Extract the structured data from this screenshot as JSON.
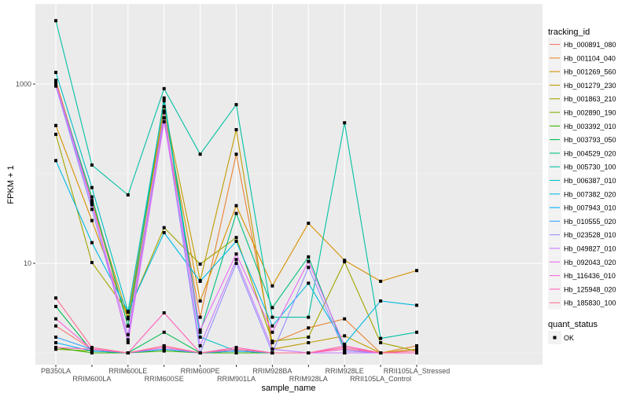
{
  "chart_data": {
    "type": "line",
    "xlabel": "sample_name",
    "ylabel": "FPKM + 1",
    "y_scale": "log10",
    "y_ticks": [
      "10",
      "1000"
    ],
    "grid": true,
    "legend_position": "right",
    "categories": [
      "PB350LA",
      "RRIM600LA",
      "RRIM600LE",
      "RRIM600SE",
      "RRIM600PE",
      "RRIM901LA",
      "RRIM928BA",
      "RRIM928LA",
      "RRIM928LE",
      "RRII105LA_Control",
      "RRII105LA_Stressed"
    ],
    "legend_title": "tracking_id",
    "series": [
      {
        "name": "Hb_000891_080",
        "color": "#F8766D",
        "values": [
          2.0,
          1.1,
          1.0,
          1.2,
          1.0,
          1.1,
          1.0,
          1.0,
          1.1,
          1.0,
          1.1
        ]
      },
      {
        "name": "Hb_001104_040",
        "color": "#EA8331",
        "values": [
          1100,
          50,
          2.0,
          420,
          2.5,
          165,
          1.3,
          1.9,
          2.4,
          1.0,
          1.2
        ]
      },
      {
        "name": "Hb_001269_560",
        "color": "#D89000",
        "values": [
          345,
          30,
          2.4,
          500,
          3.8,
          44,
          5.6,
          28,
          10.8,
          6.3,
          8.3
        ]
      },
      {
        "name": "Hb_001279_230",
        "color": "#C09B00",
        "values": [
          1000,
          50,
          2.5,
          560,
          6.4,
          310,
          1.1,
          1.3,
          1.55,
          1.0,
          1.1
        ]
      },
      {
        "name": "Hb_001863_210",
        "color": "#A3A500",
        "values": [
          275,
          10.2,
          2.85,
          25,
          9.8,
          19.4,
          1.35,
          1.5,
          10.4,
          1.3,
          1.05
        ]
      },
      {
        "name": "Hb_002890_190",
        "color": "#7CAE00",
        "values": [
          1.1,
          1.05,
          1.0,
          1.1,
          1.0,
          1.05,
          1.0,
          1.0,
          1.0,
          1.0,
          1.0
        ]
      },
      {
        "name": "Hb_003392_010",
        "color": "#39B600",
        "values": [
          1.15,
          1.0,
          1.0,
          1.05,
          1.0,
          1.0,
          1.0,
          1.0,
          1.0,
          1.0,
          1.0
        ]
      },
      {
        "name": "Hb_003793_050",
        "color": "#00BB4E",
        "values": [
          3.3,
          1.05,
          1.0,
          1.7,
          1.0,
          1.05,
          1.0,
          1.0,
          1.0,
          1.0,
          1.0
        ]
      },
      {
        "name": "Hb_004529_020",
        "color": "#00BF7D",
        "values": [
          1000,
          55,
          2.0,
          700,
          1.7,
          36,
          3.2,
          11.8,
          1.1,
          1.0,
          1.0
        ]
      },
      {
        "name": "Hb_005730_100",
        "color": "#00C1A3",
        "values": [
          5100,
          125,
          58,
          890,
          165,
          590,
          2.5,
          2.5,
          370,
          1.45,
          1.7
        ]
      },
      {
        "name": "Hb_006387_010",
        "color": "#00BFC4",
        "values": [
          1350,
          70,
          2.9,
          650,
          1.5,
          1.05,
          1.0,
          1.0,
          1.0,
          1.0,
          1.0
        ]
      },
      {
        "name": "Hb_007382_020",
        "color": "#00BAE0",
        "values": [
          140,
          17,
          2.9,
          22,
          6.3,
          17.6,
          2.0,
          6.0,
          1.25,
          3.8,
          3.4
        ]
      },
      {
        "name": "Hb_007943_010",
        "color": "#00B0F6",
        "values": [
          1.3,
          1.05,
          1.0,
          1.1,
          1.0,
          1.05,
          1.0,
          1.0,
          1.0,
          1.0,
          1.0
        ]
      },
      {
        "name": "Hb_010555_020",
        "color": "#35A2FF",
        "values": [
          1.5,
          1.1,
          1.0,
          1.1,
          1.0,
          1.05,
          1.0,
          1.0,
          1.0,
          1.0,
          1.0
        ]
      },
      {
        "name": "Hb_023528_010",
        "color": "#9590FF",
        "values": [
          950,
          40,
          1.4,
          420,
          1.0,
          10,
          1.0,
          9.0,
          1.05,
          1.0,
          1.0
        ]
      },
      {
        "name": "Hb_049827_010",
        "color": "#C77CFF",
        "values": [
          980,
          45,
          1.6,
          480,
          1.2,
          11,
          1.1,
          1.0,
          1.0,
          1.0,
          1.0
        ]
      },
      {
        "name": "Hb_092043_020",
        "color": "#E76BF3",
        "values": [
          1020,
          48,
          1.3,
          380,
          1.8,
          12.7,
          1.7,
          10.5,
          1.2,
          1.0,
          1.0
        ]
      },
      {
        "name": "Hb_116436_010",
        "color": "#FA62DB",
        "values": [
          2.4,
          1.1,
          1.0,
          1.15,
          1.0,
          1.1,
          1.0,
          1.0,
          1.1,
          1.0,
          1.0
        ]
      },
      {
        "name": "Hb_125948_020",
        "color": "#FF62BC",
        "values": [
          1.15,
          1.1,
          1.0,
          2.8,
          1.0,
          1.15,
          1.0,
          1.0,
          1.2,
          1.0,
          1.0
        ]
      },
      {
        "name": "Hb_185830_100",
        "color": "#FF6C91",
        "values": [
          4.1,
          1.15,
          1.0,
          1.2,
          1.0,
          1.1,
          1.0,
          1.0,
          1.15,
          1.0,
          1.05
        ]
      }
    ],
    "shape_legend": {
      "title": "quant_status",
      "items": [
        "OK"
      ]
    }
  }
}
